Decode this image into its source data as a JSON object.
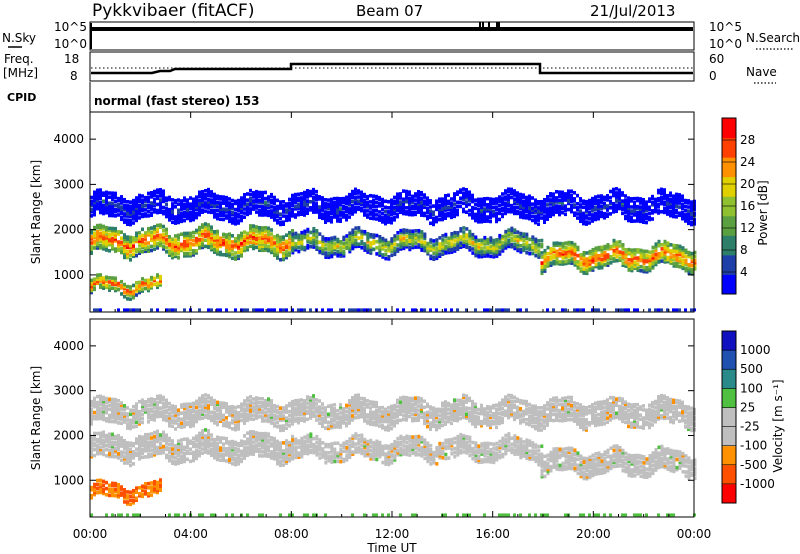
{
  "header": {
    "station": "Pykkvibaer (fitACF)",
    "beam": "Beam 07",
    "date": "21/Jul/2013"
  },
  "noise_panel": {
    "left_label": "N.Sky",
    "left_ticks": [
      "10^5",
      "10^0"
    ],
    "right_ticks": [
      "10^5",
      "10^0"
    ],
    "right_label": "N.Search"
  },
  "freq_panel": {
    "left_label_1": "Freq.",
    "left_label_2": "[MHz]",
    "left_ticks": [
      "18",
      "8"
    ],
    "right_ticks": [
      "60",
      "0"
    ],
    "right_label": "Nave"
  },
  "cpid": {
    "label": "CPID",
    "text": "normal (fast stereo) 153"
  },
  "chart_data": [
    {
      "type": "heatmap",
      "name": "power",
      "ylabel": "Slant Range [km]",
      "yticks": [
        "4000",
        "3000",
        "2000",
        "1000"
      ],
      "ytick_values": [
        4000,
        3000,
        2000,
        1000
      ],
      "ylim": [
        180,
        4600
      ],
      "xlim_hours": [
        0,
        24
      ],
      "colorbar": {
        "label": "Power [dB]",
        "ticks": [
          "28",
          "24",
          "20",
          "16",
          "12",
          "8",
          "4"
        ],
        "colors": [
          "#0000ff",
          "#1f3fa8",
          "#2d7f6a",
          "#5aa040",
          "#8fc030",
          "#e0d000",
          "#ff9000",
          "#ff4000",
          "#ff0000"
        ]
      },
      "bands": [
        {
          "t": [
            0.0,
            8.0
          ],
          "center": 1780,
          "spread": 260,
          "level": "high"
        },
        {
          "t": [
            8.0,
            17.9
          ],
          "center": 1750,
          "spread": 220,
          "level": "mid"
        },
        {
          "t": [
            17.9,
            24.0
          ],
          "center": 1450,
          "spread": 240,
          "level": "high"
        },
        {
          "t": [
            0.0,
            2.8
          ],
          "center": 800,
          "spread": 150,
          "level": "high"
        },
        {
          "t": [
            0.0,
            24.0
          ],
          "center": 2550,
          "spread": 250,
          "level": "low"
        }
      ]
    },
    {
      "type": "heatmap",
      "name": "velocity",
      "ylabel": "Slant Range [km]",
      "yticks": [
        "4000",
        "3000",
        "2000",
        "1000"
      ],
      "ytick_values": [
        4000,
        3000,
        2000,
        1000
      ],
      "ylim": [
        180,
        4600
      ],
      "xlim_hours": [
        0,
        24
      ],
      "colorbar": {
        "label": "Velocity [m s⁻¹]",
        "ticks": [
          "1000",
          "500",
          "100",
          "25",
          "-25",
          "-100",
          "-500",
          "-1000"
        ],
        "colors": [
          "#ff0000",
          "#ff5000",
          "#ff9000",
          "#bfbfbf",
          "#bfbfbf",
          "#50c040",
          "#2a8a8a",
          "#2050b0",
          "#1010c0"
        ]
      }
    }
  ],
  "x_axis": {
    "label": "Time UT",
    "ticks": [
      "00:00",
      "04:00",
      "08:00",
      "12:00",
      "16:00",
      "20:00",
      "00:00"
    ],
    "tick_hours": [
      0,
      4,
      8,
      12,
      16,
      20,
      24
    ]
  }
}
